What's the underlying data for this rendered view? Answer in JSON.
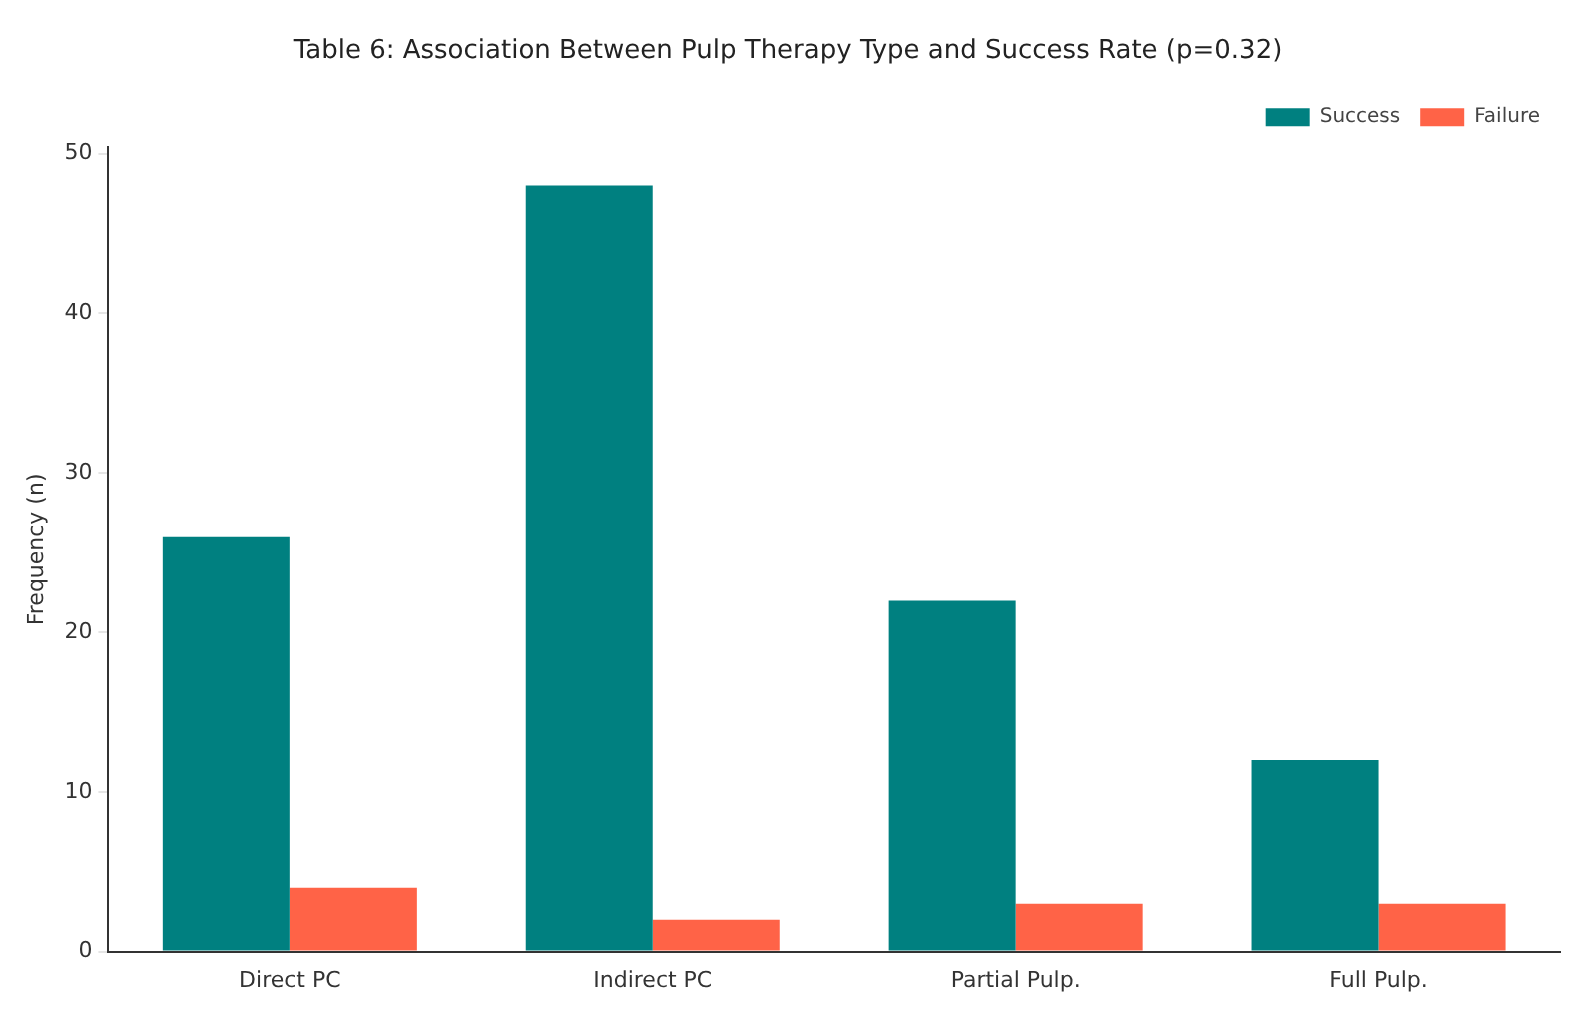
{
  "chart_data": {
    "type": "bar",
    "title": "Table 6: Association Between Pulp Therapy Type and Success Rate (p=0.32)",
    "ylabel": "Frequency (n)",
    "categories": [
      "Direct PC",
      "Indirect PC",
      "Partial Pulp.",
      "Full Pulp."
    ],
    "series": [
      {
        "name": "Success",
        "color": "#008080",
        "values": [
          26,
          48,
          22,
          12
        ]
      },
      {
        "name": "Failure",
        "color": "#ff6347",
        "values": [
          4,
          2,
          3,
          3
        ]
      }
    ],
    "ylim": [
      0,
      50.4
    ],
    "yticks": [
      0,
      10,
      20,
      30,
      40,
      50
    ],
    "grid": false,
    "legend": "top right"
  }
}
